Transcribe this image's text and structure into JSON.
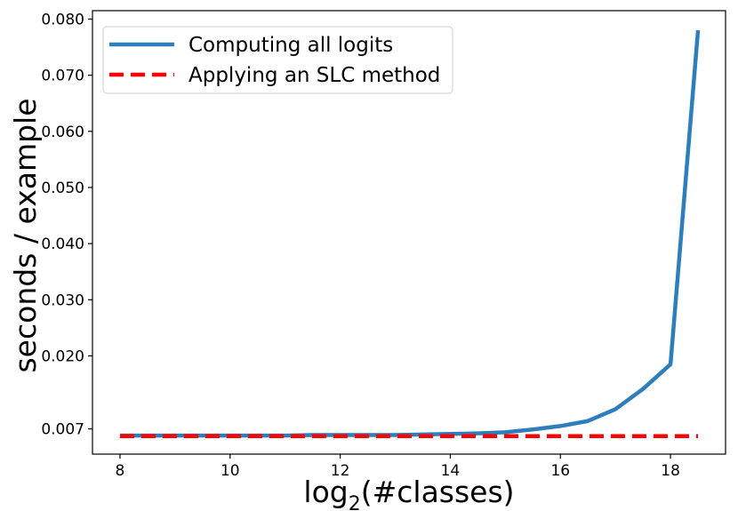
{
  "chart_data": {
    "type": "line",
    "xlabel": "log2(#classes)",
    "xlabel_base": "log",
    "xlabel_sub": "2",
    "xlabel_rest": "(#classes)",
    "ylabel": "seconds / example",
    "xlim": [
      7.5,
      19
    ],
    "ylim": [
      0.0025,
      0.0815
    ],
    "xticks": [
      8,
      10,
      12,
      14,
      16,
      18
    ],
    "xtick_labels": [
      "8",
      "10",
      "12",
      "14",
      "16",
      "18"
    ],
    "yticks": [
      0.007,
      0.02,
      0.03,
      0.04,
      0.05,
      0.06,
      0.07,
      0.08
    ],
    "ytick_labels": [
      "0.007",
      "0.020",
      "0.030",
      "0.040",
      "0.050",
      "0.060",
      "0.070",
      "0.080"
    ],
    "grid": false,
    "legend_position": "top-left",
    "series": [
      {
        "name": "Computing all logits",
        "color": "#2e7ebc",
        "style": "solid",
        "x": [
          8,
          8.5,
          9,
          9.5,
          10,
          10.5,
          11,
          11.5,
          12,
          12.5,
          13,
          13.5,
          14,
          14.5,
          15,
          15.5,
          16,
          16.5,
          17,
          17.5,
          18,
          18.5
        ],
        "y": [
          0.0058,
          0.0058,
          0.0058,
          0.0058,
          0.0058,
          0.0058,
          0.0058,
          0.0059,
          0.0059,
          0.0059,
          0.0059,
          0.006,
          0.0061,
          0.0062,
          0.0064,
          0.0069,
          0.0075,
          0.0084,
          0.0105,
          0.0141,
          0.0185,
          0.078
        ]
      },
      {
        "name": "Applying an SLC method",
        "color": "#ff0000",
        "style": "dashed",
        "x": [
          8,
          18.5
        ],
        "y": [
          0.0057,
          0.0057
        ]
      }
    ]
  }
}
